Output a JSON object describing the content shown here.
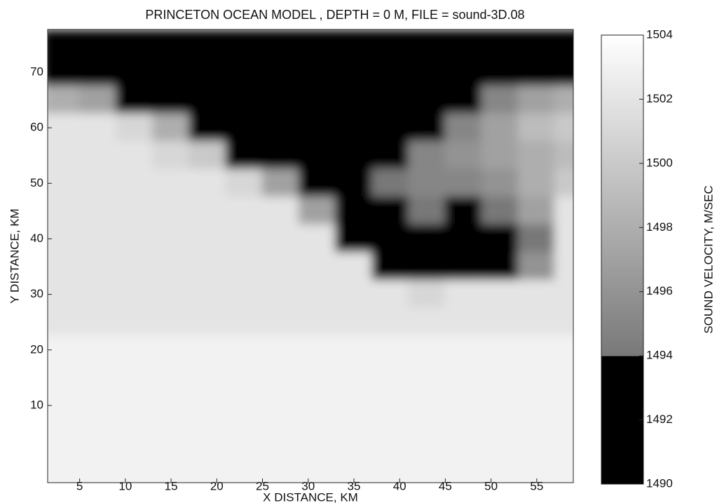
{
  "chart_data": {
    "type": "heatmap",
    "title": "PRINCETON OCEAN MODEL , DEPTH = 0 M, FILE = sound-3D.08",
    "xlabel": "X DISTANCE, KM",
    "ylabel": "Y DISTANCE, KM",
    "colorbar_label": "SOUND VELOCITY, M/SEC",
    "xlim": [
      1.5,
      59
    ],
    "ylim": [
      -3.9,
      77.7
    ],
    "xticks": [
      5,
      10,
      15,
      20,
      25,
      30,
      35,
      40,
      45,
      50,
      55
    ],
    "yticks": [
      10,
      20,
      30,
      40,
      50,
      60,
      70
    ],
    "clim": [
      1490,
      1504
    ],
    "cticks": [
      1490,
      1492,
      1494,
      1496,
      1498,
      1500,
      1502,
      1504
    ],
    "x": [
      3,
      7,
      11,
      15,
      19,
      23,
      27,
      31,
      35,
      39,
      43,
      47,
      51,
      55,
      59
    ],
    "y": [
      75,
      70,
      65,
      60,
      55,
      50,
      45,
      40,
      35,
      30,
      25,
      20,
      15,
      10,
      5,
      0,
      -5
    ],
    "z": [
      [
        1492,
        1492,
        1492,
        1492,
        1492,
        1492,
        1492,
        1492,
        1492,
        1492,
        1492,
        1492,
        1492,
        1492,
        1492
      ],
      [
        1492,
        1492,
        1492,
        1492,
        1492,
        1492,
        1492,
        1492,
        1492,
        1492,
        1492,
        1492,
        1492,
        1492,
        1492
      ],
      [
        1498,
        1497,
        1492,
        1492,
        1492,
        1492,
        1492,
        1492,
        1492,
        1492,
        1492,
        1493,
        1495,
        1497,
        1498
      ],
      [
        1502,
        1502,
        1501,
        1498,
        1493,
        1492,
        1492,
        1492,
        1492,
        1492,
        1493,
        1495,
        1497,
        1499,
        1500
      ],
      [
        1502,
        1502,
        1502,
        1501,
        1500,
        1492,
        1492,
        1492,
        1492,
        1493,
        1495,
        1496,
        1497,
        1498,
        1499
      ],
      [
        1502,
        1502,
        1502,
        1502,
        1502,
        1501,
        1497,
        1492,
        1492,
        1494,
        1495,
        1495,
        1496,
        1498,
        1500
      ],
      [
        1502,
        1502,
        1502,
        1502,
        1502,
        1502,
        1502,
        1497,
        1492,
        1493,
        1494,
        1493,
        1494,
        1497,
        1502
      ],
      [
        1502,
        1502,
        1502,
        1502,
        1502,
        1502,
        1502,
        1502,
        1493,
        1492,
        1492,
        1492,
        1492,
        1494,
        1502
      ],
      [
        1502,
        1502,
        1502,
        1502,
        1502,
        1502,
        1502,
        1502,
        1502,
        1493,
        1492,
        1492,
        1493,
        1496,
        1502
      ],
      [
        1502,
        1502,
        1502,
        1502,
        1502,
        1502,
        1502,
        1502,
        1502,
        1502,
        1501,
        1502,
        1502,
        1502,
        1502
      ],
      [
        1502,
        1502,
        1502,
        1502,
        1502,
        1502,
        1502,
        1502,
        1502,
        1502,
        1502,
        1502,
        1502,
        1502,
        1502
      ],
      [
        1503,
        1503,
        1503,
        1503,
        1503,
        1503,
        1503,
        1503,
        1503,
        1503,
        1503,
        1503,
        1503,
        1503,
        1503
      ],
      [
        1503,
        1503,
        1503,
        1503,
        1503,
        1503,
        1503,
        1503,
        1503,
        1503,
        1503,
        1503,
        1503,
        1503,
        1503
      ],
      [
        1503,
        1503,
        1503,
        1503,
        1503,
        1503,
        1503,
        1503,
        1503,
        1503,
        1503,
        1503,
        1503,
        1503,
        1503
      ],
      [
        1503,
        1503,
        1503,
        1503,
        1503,
        1503,
        1503,
        1503,
        1503,
        1503,
        1503,
        1503,
        1503,
        1503,
        1503
      ],
      [
        1503,
        1503,
        1503,
        1503,
        1503,
        1503,
        1503,
        1503,
        1503,
        1503,
        1503,
        1503,
        1503,
        1503,
        1503
      ],
      [
        1503,
        1503,
        1503,
        1503,
        1503,
        1503,
        1503,
        1503,
        1503,
        1503,
        1503,
        1503,
        1503,
        1503,
        1503
      ]
    ]
  }
}
